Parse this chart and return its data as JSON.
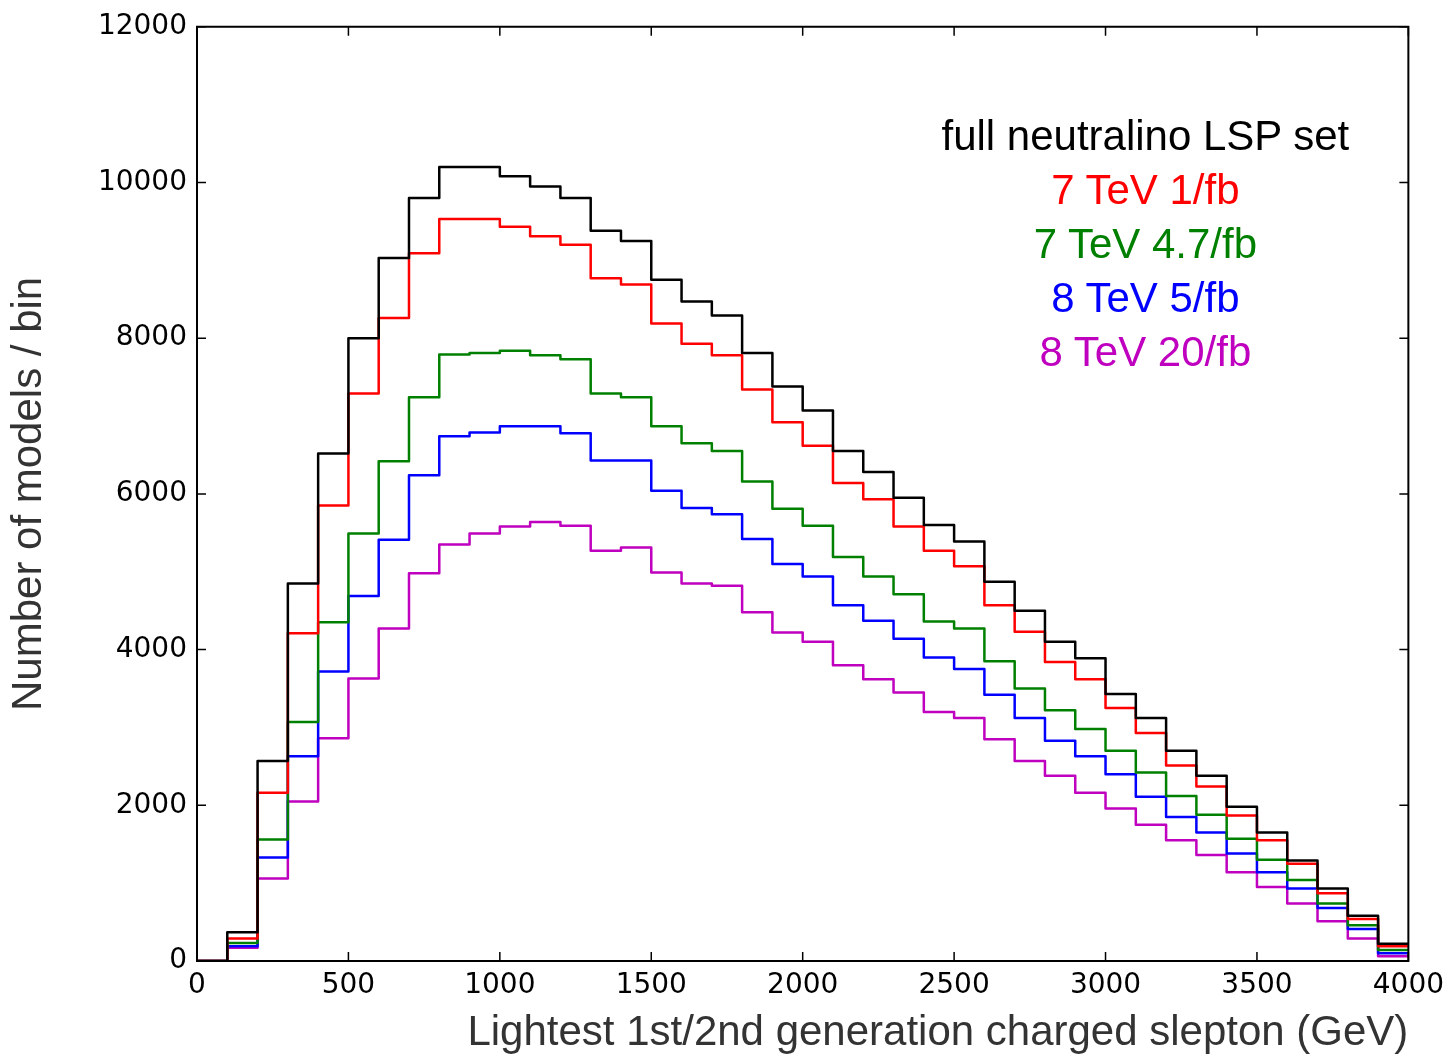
{
  "chart_data": {
    "type": "histogram",
    "xlabel": "Lightest 1st/2nd generation charged slepton (GeV)",
    "ylabel": "Number of models / bin",
    "bins": [
      0,
      100,
      200,
      300,
      400,
      500,
      600,
      700,
      800,
      900,
      1000,
      1100,
      1200,
      1300,
      1400,
      1500,
      1600,
      1700,
      1800,
      1900,
      2000,
      2100,
      2200,
      2300,
      2400,
      2500,
      2600,
      2700,
      2800,
      2900,
      3000,
      3100,
      3200,
      3300,
      3400,
      3500,
      3600,
      3700,
      3800,
      3900,
      4000
    ],
    "series": [
      {
        "name": "full neutralino LSP set",
        "color": "#000000",
        "values": [
          0,
          370,
          2570,
          4850,
          6520,
          8000,
          9030,
          9800,
          10200,
          10200,
          10080,
          9950,
          9800,
          9380,
          9250,
          8750,
          8470,
          8290,
          7810,
          7380,
          7070,
          6550,
          6280,
          5950,
          5600,
          5390,
          4870,
          4500,
          4100,
          3890,
          3430,
          3120,
          2700,
          2380,
          1980,
          1650,
          1290,
          930,
          580,
          220
        ]
      },
      {
        "name": "7 TeV 1/fb",
        "color": "#ff0000",
        "values": [
          0,
          290,
          2160,
          4210,
          5850,
          7290,
          8260,
          9090,
          9530,
          9530,
          9430,
          9310,
          9200,
          8770,
          8690,
          8190,
          7930,
          7780,
          7340,
          6920,
          6620,
          6140,
          5930,
          5580,
          5270,
          5070,
          4570,
          4230,
          3840,
          3620,
          3250,
          2930,
          2510,
          2240,
          1870,
          1550,
          1250,
          870,
          540,
          190
        ]
      },
      {
        "name": "7 TeV 4.7/fb",
        "color": "#008000",
        "values": [
          0,
          230,
          1560,
          3070,
          4350,
          5490,
          6420,
          7240,
          7790,
          7810,
          7840,
          7780,
          7730,
          7290,
          7240,
          6870,
          6650,
          6550,
          6160,
          5810,
          5590,
          5190,
          4940,
          4710,
          4360,
          4270,
          3850,
          3500,
          3220,
          2980,
          2700,
          2420,
          2120,
          1880,
          1570,
          1300,
          1040,
          740,
          460,
          140
        ]
      },
      {
        "name": "8 TeV 5/fb",
        "color": "#0000ff",
        "values": [
          0,
          190,
          1330,
          2630,
          3720,
          4690,
          5410,
          6240,
          6740,
          6790,
          6870,
          6870,
          6780,
          6430,
          6430,
          6040,
          5820,
          5740,
          5420,
          5100,
          4940,
          4570,
          4370,
          4140,
          3900,
          3750,
          3420,
          3120,
          2830,
          2630,
          2400,
          2110,
          1850,
          1650,
          1380,
          1140,
          930,
          680,
          410,
          100
        ]
      },
      {
        "name": "8 TeV 20/fb",
        "color": "#bf00bf",
        "values": [
          0,
          170,
          1060,
          2050,
          2860,
          3630,
          4270,
          4980,
          5350,
          5490,
          5580,
          5640,
          5590,
          5270,
          5310,
          4990,
          4850,
          4820,
          4480,
          4220,
          4100,
          3800,
          3620,
          3450,
          3200,
          3120,
          2850,
          2570,
          2380,
          2160,
          1960,
          1750,
          1550,
          1360,
          1140,
          950,
          740,
          510,
          290,
          60
        ]
      }
    ],
    "xlim": [
      0,
      4000
    ],
    "xticks": [
      0,
      500,
      1000,
      1500,
      2000,
      2500,
      3000,
      3500,
      4000
    ],
    "ylim": [
      0,
      12000
    ],
    "yticks": [
      0,
      2000,
      4000,
      6000,
      8000,
      10000,
      12000
    ],
    "legend": "top right",
    "grid": false
  }
}
